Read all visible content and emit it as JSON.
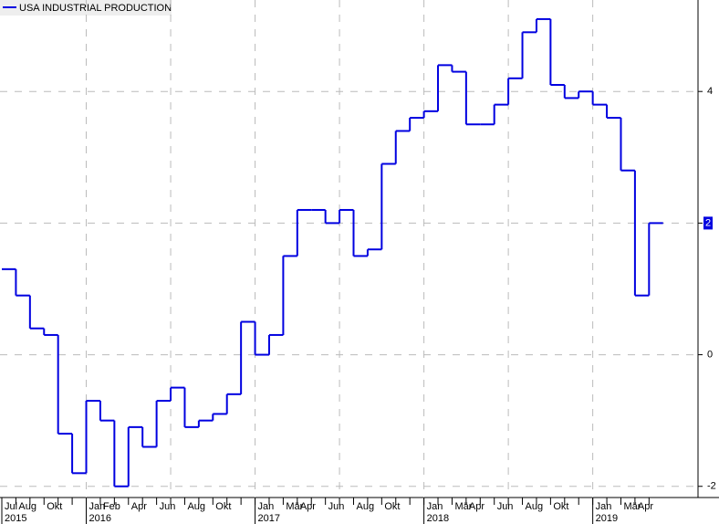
{
  "chart_data": {
    "type": "step-line",
    "categories": [
      "Jul",
      "Aug",
      null,
      "Okt",
      null,
      null,
      "Jan",
      "Feb",
      null,
      "Apr",
      null,
      "Jun",
      null,
      "Aug",
      null,
      "Okt",
      null,
      null,
      "Jan",
      null,
      "Mär",
      "Apr",
      null,
      "Jun",
      null,
      "Aug",
      null,
      "Okt",
      null,
      null,
      "Jan",
      null,
      "Mär",
      "Apr",
      null,
      "Jun",
      null,
      "Aug",
      null,
      "Okt",
      null,
      null,
      "Jan",
      null,
      "Mär",
      "Apr",
      null
    ],
    "years": [
      "2015",
      null,
      null,
      null,
      null,
      null,
      "2016",
      null,
      null,
      null,
      null,
      null,
      null,
      null,
      null,
      null,
      null,
      null,
      "2017",
      null,
      null,
      null,
      null,
      null,
      null,
      null,
      null,
      null,
      null,
      null,
      "2018",
      null,
      null,
      null,
      null,
      null,
      null,
      null,
      null,
      null,
      null,
      null,
      "2019",
      null,
      null,
      null,
      null
    ],
    "series": [
      {
        "name": "USA INDUSTRIAL PRODUCTION",
        "color": "#0000e0",
        "values": [
          1.3,
          0.9,
          0.4,
          0.3,
          -1.2,
          -1.8,
          -0.7,
          -1.0,
          -2.0,
          -1.1,
          -1.4,
          -0.7,
          -0.5,
          -1.1,
          -1.0,
          -0.9,
          -0.6,
          0.5,
          0.0,
          0.3,
          1.5,
          2.2,
          2.2,
          2.0,
          2.2,
          1.5,
          1.6,
          2.9,
          3.4,
          3.6,
          3.7,
          4.4,
          4.3,
          3.5,
          3.5,
          3.8,
          4.2,
          4.9,
          5.1,
          4.1,
          3.9,
          4.0,
          3.8,
          3.6,
          2.8,
          0.9,
          2
        ]
      }
    ],
    "ylim": [
      -2.17,
      5.39
    ],
    "yticks": [
      -2,
      0,
      2,
      4
    ],
    "grid": true
  }
}
